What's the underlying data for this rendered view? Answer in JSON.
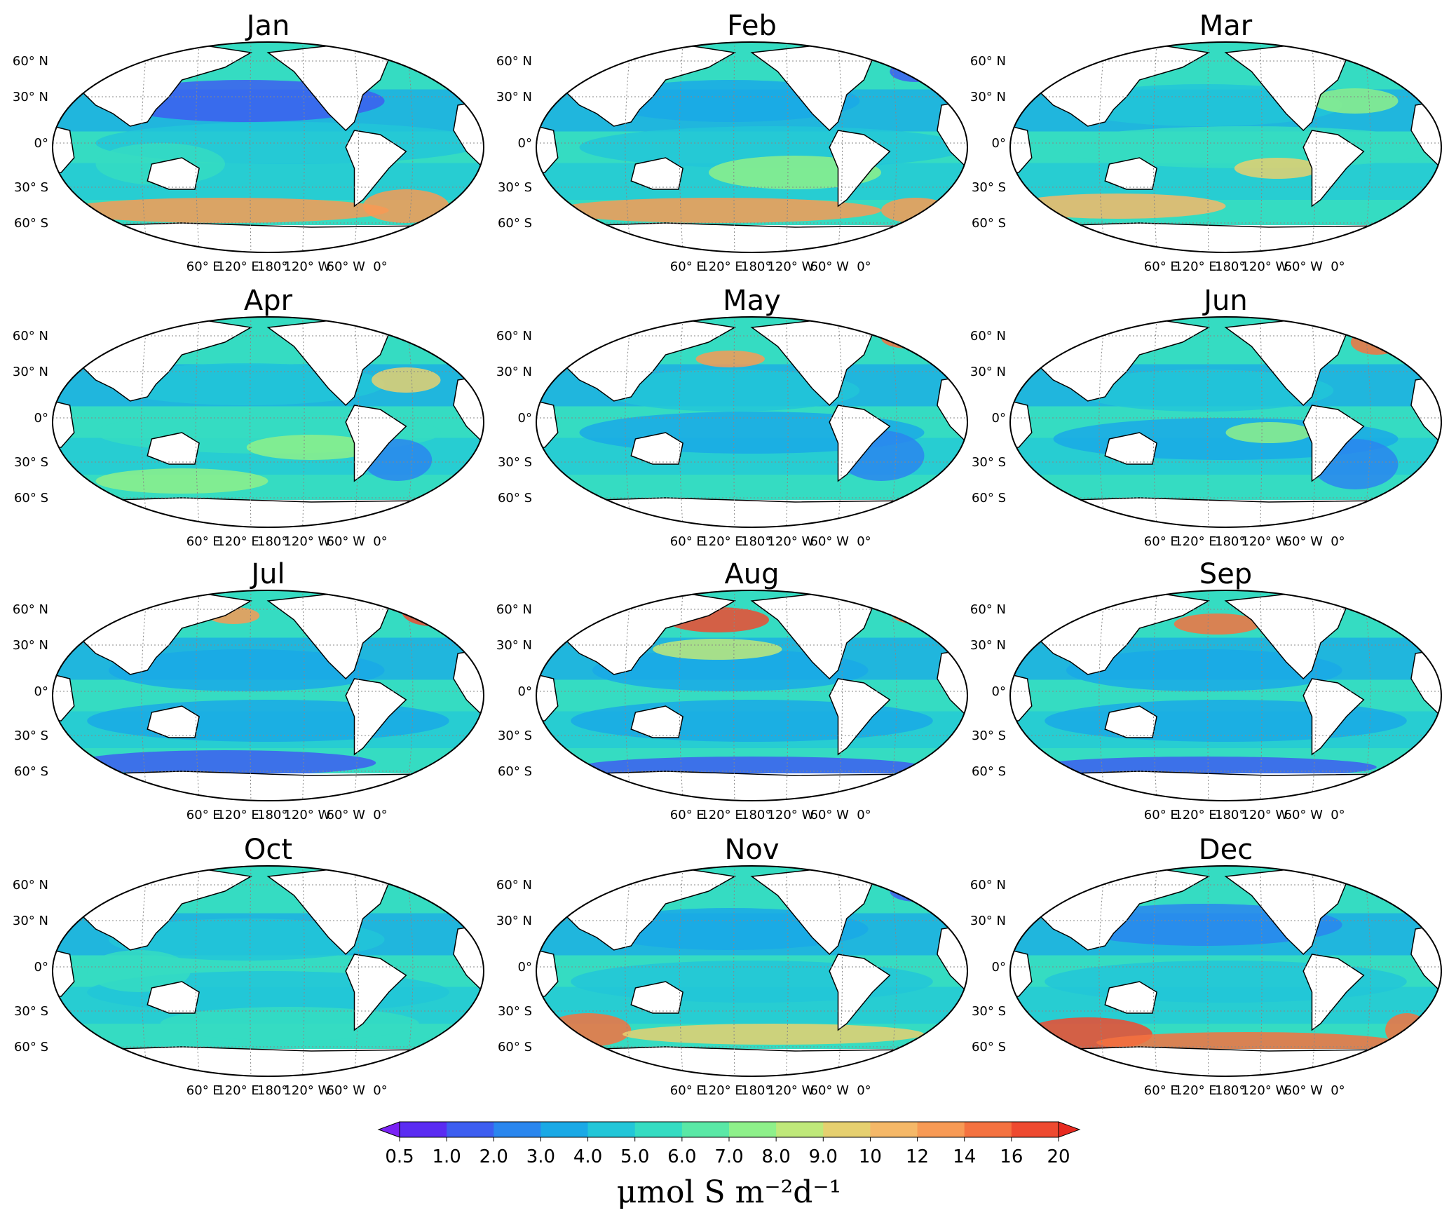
{
  "figure": {
    "panels": [
      {
        "month": "Jan"
      },
      {
        "month": "Feb"
      },
      {
        "month": "Mar"
      },
      {
        "month": "Apr"
      },
      {
        "month": "May"
      },
      {
        "month": "Jun"
      },
      {
        "month": "Jul"
      },
      {
        "month": "Aug"
      },
      {
        "month": "Sep"
      },
      {
        "month": "Oct"
      },
      {
        "month": "Nov"
      },
      {
        "month": "Dec"
      }
    ],
    "lat_labels": [
      "60° N",
      "30° N",
      "0°",
      "30° S",
      "60° S"
    ],
    "lon_labels": [
      "60° E",
      "120° E",
      "180°",
      "120° W",
      "60° W",
      "0°"
    ],
    "projection": "Robinson (Pacific-centred)",
    "colorbar": {
      "ticks": [
        "0.5",
        "1.0",
        "2.0",
        "3.0",
        "4.0",
        "5.0",
        "6.0",
        "7.0",
        "8.0",
        "9.0",
        "10",
        "12",
        "14",
        "16",
        "20"
      ],
      "colors": [
        "#5a2cf2",
        "#3d5ef0",
        "#2a86ee",
        "#1aa9e6",
        "#22c6d8",
        "#35dcc2",
        "#5ae8a6",
        "#8ef08a",
        "#bfe87a",
        "#e6d070",
        "#f5b868",
        "#f79a55",
        "#f47240",
        "#ee4a30"
      ],
      "extend_low_color": "#7a22f5",
      "extend_high_color": "#e82a20",
      "units": "μmol S m⁻²d⁻¹"
    }
  }
}
